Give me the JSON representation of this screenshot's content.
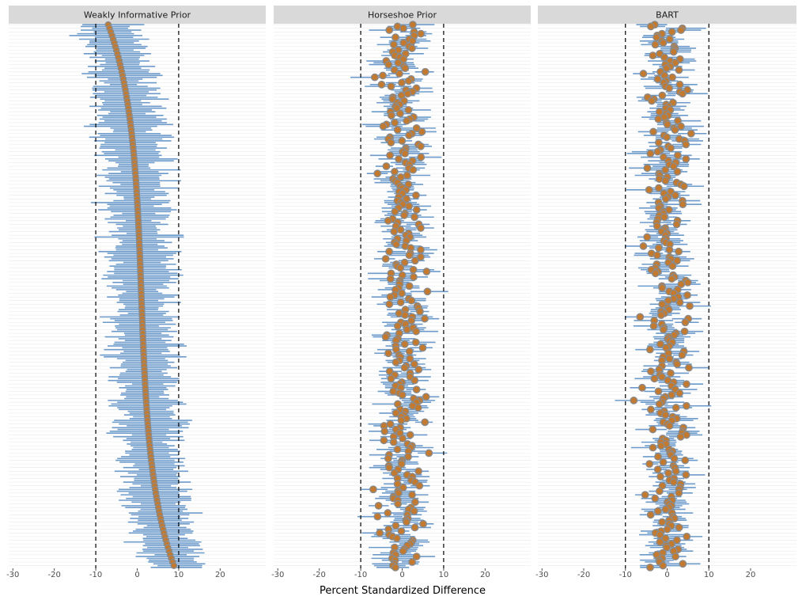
{
  "chart_data": {
    "type": "scatter",
    "xlabel": "Percent Standardized Difference",
    "xlim": [
      -31,
      31
    ],
    "xticks": [
      -30,
      -20,
      -10,
      0,
      10,
      20
    ],
    "xtick_labels": [
      "-30",
      "-20",
      "-10",
      "0",
      "10",
      "20"
    ],
    "reference_lines": [
      -10,
      10
    ],
    "n_covariates": 300,
    "colors": {
      "interval": "#5b8fc4",
      "point_fill": "#c47a2e",
      "point_stroke": "#8a8a8a",
      "strip_bg": "#d9d9d9",
      "grid": "#ebebeb"
    },
    "panels": [
      {
        "title": "Weakly Informative Prior",
        "pattern": "sorted",
        "estimate_range": [
          -7,
          9
        ],
        "interval_half_width": [
          4,
          9
        ]
      },
      {
        "title": "Horseshoe Prior",
        "pattern": "scattered",
        "estimate_range": [
          -7,
          7
        ],
        "interval_half_width": [
          2,
          5
        ]
      },
      {
        "title": "BART",
        "pattern": "scattered",
        "estimate_range": [
          -8,
          10
        ],
        "interval_half_width": [
          2,
          5
        ]
      }
    ]
  }
}
